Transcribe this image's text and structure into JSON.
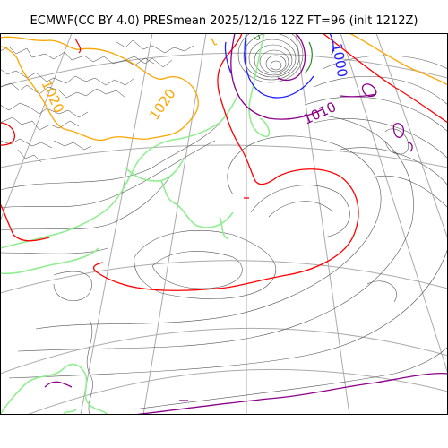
{
  "title": "ECMWF(CC BY 4.0) PRESmean 2025/12/16 12Z FT=96 (init 1212Z)",
  "legend_contours": {
    "isobar_1000": {
      "label": "1000",
      "color": "#1f1fff"
    },
    "isobar_1010": {
      "label": "1010",
      "color": "#8b008b"
    },
    "isobar_1020": {
      "label": "1020",
      "color": "#ffa500"
    },
    "isobar_1020b": {
      "label": "1020",
      "color": "#ffa500"
    },
    "isobar_1010_red": {
      "color": "#ff0000"
    },
    "isobar_green": {
      "color": "#90ee90"
    },
    "isobar_minor": {
      "color": "#555555"
    },
    "graticule": {
      "color": "#aaaaaa"
    }
  }
}
